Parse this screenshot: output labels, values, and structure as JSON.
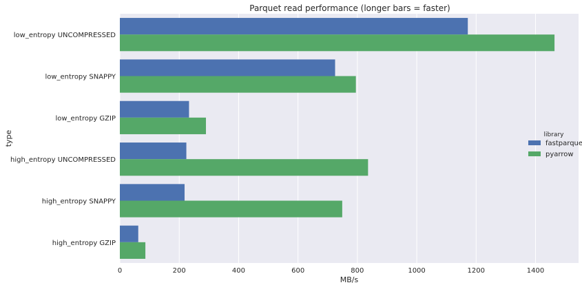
{
  "chart_data": {
    "type": "bar",
    "orientation": "horizontal",
    "title": "Parquet read performance (longer bars = faster)",
    "xlabel": "MB/s",
    "ylabel": "type",
    "categories": [
      "low_entropy UNCOMPRESSED",
      "low_entropy SNAPPY",
      "low_entropy GZIP",
      "high_entropy UNCOMPRESSED",
      "high_entropy SNAPPY",
      "high_entropy GZIP"
    ],
    "series": [
      {
        "name": "fastparquet",
        "color": "#4c72b0",
        "values": [
          1172,
          725,
          233,
          224,
          218,
          62
        ]
      },
      {
        "name": "pyarrow",
        "color": "#55a868",
        "values": [
          1464,
          795,
          290,
          836,
          749,
          86
        ]
      }
    ],
    "xlim": [
      0,
      1545
    ],
    "xticks": [
      0,
      200,
      400,
      600,
      800,
      1000,
      1200,
      1400
    ],
    "grid": true,
    "background_color": "#eaeaf2",
    "legend": {
      "title": "library",
      "placement": "right"
    }
  }
}
